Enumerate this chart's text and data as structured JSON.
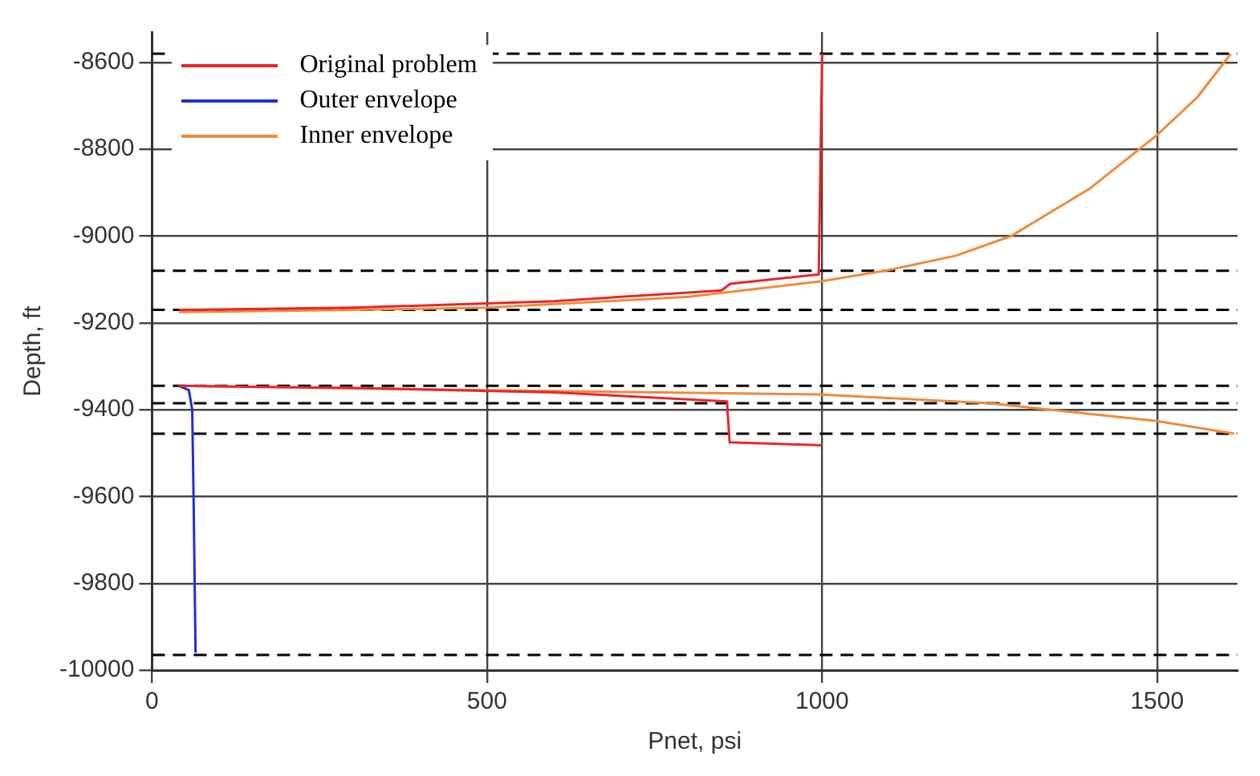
{
  "chart_data": {
    "type": "line",
    "xlabel": "Pnet, psi",
    "ylabel": "Depth, ft",
    "xlim": [
      0,
      1620
    ],
    "xticks": [
      0,
      500,
      1000,
      1500
    ],
    "ylim": [
      -10000,
      -8530
    ],
    "yticks": [
      -10000,
      -9800,
      -9600,
      -9400,
      -9200,
      -9000,
      -8800,
      -8600
    ],
    "grid": true,
    "legend": "top left",
    "marker": "none",
    "line_style": "solid",
    "series": [
      {
        "name": "Original problem",
        "color": "#e8262b",
        "x": [
          40,
          300,
          600,
          800,
          850,
          863,
          990,
          995,
          1000
        ],
        "values": [
          -9170,
          -9165,
          -9150,
          -9130,
          -9125,
          -9110,
          -9089,
          -9089,
          -8580
        ]
      },
      {
        "color": "#e8262b",
        "x": [
          40,
          300,
          600,
          858,
          862,
          1000
        ],
        "values": [
          -9345,
          -9350,
          -9360,
          -9381,
          -9475,
          -9482
        ]
      },
      {
        "name": "Outer envelope",
        "color": "#2030d0",
        "x": [
          40,
          55,
          60,
          62,
          65
        ],
        "values": [
          -9345,
          -9355,
          -9400,
          -9600,
          -9960
        ]
      },
      {
        "name": "Inner envelope",
        "color": "#f08a3a",
        "x": [
          40,
          300,
          500,
          800,
          1000,
          1100,
          1200,
          1282,
          1400,
          1500,
          1560,
          1610
        ],
        "values": [
          -9175,
          -9170,
          -9165,
          -9140,
          -9104,
          -9078,
          -9045,
          -9000,
          -8890,
          -8767,
          -8680,
          -8580
        ]
      },
      {
        "color": "#f08a3a",
        "x": [
          40,
          500,
          1000,
          1250,
          1500,
          1615
        ],
        "values": [
          -9345,
          -9355,
          -9365,
          -9385,
          -9426,
          -9455
        ]
      }
    ],
    "ref_lines": [
      {
        "axis": "y",
        "value": -8580,
        "color": "#000000",
        "line_style": "dashed"
      },
      {
        "axis": "y",
        "value": -9080,
        "color": "#000000",
        "line_style": "dashed"
      },
      {
        "axis": "y",
        "value": -9170,
        "color": "#000000",
        "line_style": "dashed"
      },
      {
        "axis": "y",
        "value": -9345,
        "color": "#000000",
        "line_style": "dashed"
      },
      {
        "axis": "y",
        "value": -9385,
        "color": "#000000",
        "line_style": "dashed"
      },
      {
        "axis": "y",
        "value": -9455,
        "color": "#000000",
        "line_style": "dashed"
      },
      {
        "axis": "y",
        "value": -9965,
        "color": "#000000",
        "line_style": "dashed"
      }
    ]
  }
}
